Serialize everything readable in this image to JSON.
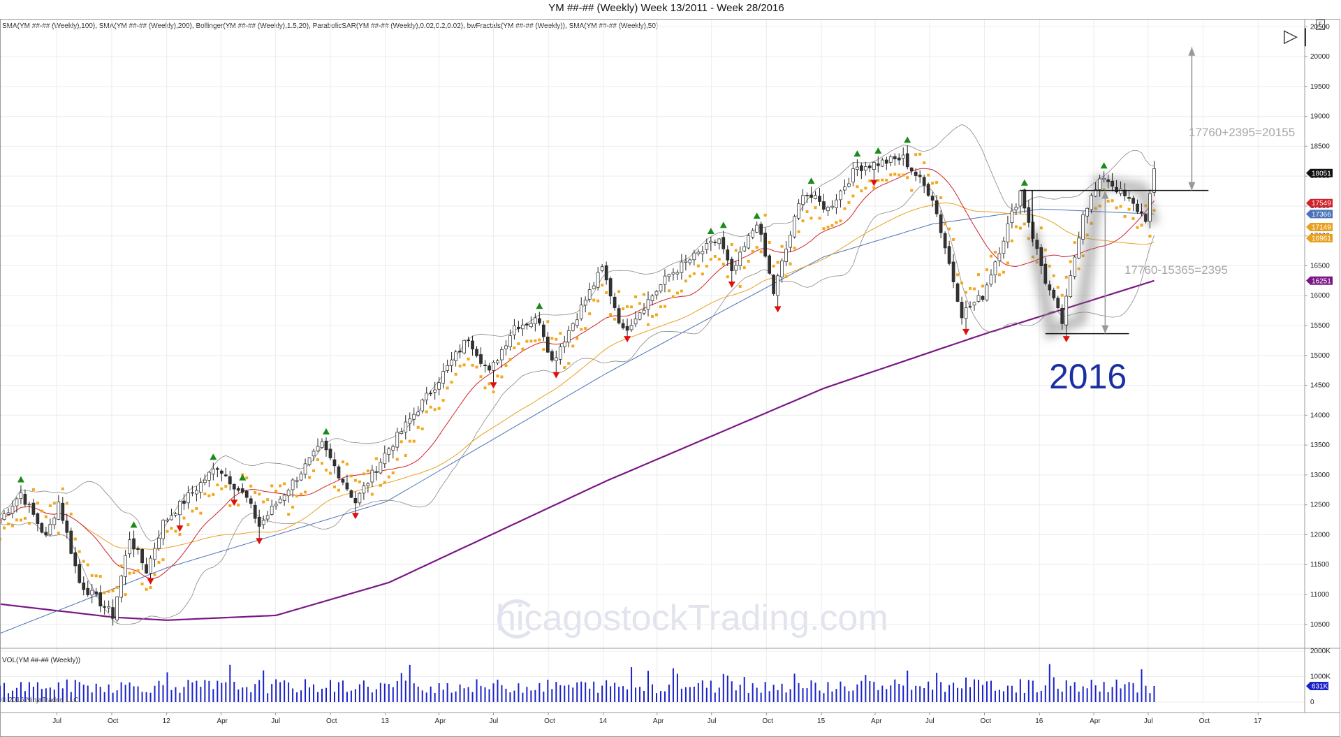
{
  "title": "YM ##-## (Weekly)  Week 13/2011 - Week 28/2016",
  "indicators_text": "SMA(YM ##-## (Weekly),100), SMA(YM ##-## (Weekly),200), Bollinger(YM ##-## (Weekly),1.5,20), ParabolicSAR(YM ##-## (Weekly),0.02,0.2,0.02), bwFractals(YM ##-## (Weekly)), SMA(YM ##-## (Weekly),50)",
  "volume_label": "VOL(YM ##-## (Weekly))",
  "copyright": "© 2016 NinjaTrader, LLC",
  "watermark": "hicagostockTrading.com",
  "annotations": {
    "year_label": "2016",
    "target_text": "17760+2395=20155",
    "range_text": "17760-15365=2395"
  },
  "icons": {
    "play": "play-end-icon",
    "doc": "document-icon"
  },
  "colors": {
    "candle_up": "#ffffff",
    "candle_down": "#333333",
    "sma_purple": "#7b1785",
    "sma_blue": "#4a72b8",
    "sma_red": "#d0222a",
    "sma_orange": "#e8a020",
    "sar": "#f2a81c",
    "fractal_up": "#1a8a1a",
    "fractal_down": "#e01010",
    "volume": "#1a22c8",
    "bollinger": "#888888"
  },
  "chart_data": {
    "type": "line",
    "title": "YM ##-## (Weekly)  Week 13/2011 - Week 28/2016",
    "yaxis": {
      "ticks": [
        10500,
        11000,
        11500,
        12000,
        12500,
        13000,
        13500,
        14000,
        14500,
        15000,
        15500,
        16000,
        16500,
        17000,
        17500,
        18000,
        18500,
        19000,
        19500,
        20000,
        20500
      ],
      "range": [
        10100,
        20620
      ]
    },
    "xaxis": {
      "tick_labels": [
        "Jul",
        "Oct",
        "12",
        "Apr",
        "Jul",
        "Oct",
        "13",
        "Apr",
        "Jul",
        "Oct",
        "14",
        "Apr",
        "Jul",
        "Oct",
        "15",
        "Apr",
        "Jul",
        "Oct",
        "16",
        "Apr",
        "Jul",
        "Oct",
        "17"
      ],
      "start": "2011-03-28",
      "end": "2017-03-20"
    },
    "price_badges": [
      {
        "value": "18051",
        "price": 18051,
        "color": "#111111"
      },
      {
        "value": "17549",
        "price": 17549,
        "color": "#d0222a"
      },
      {
        "value": "17366",
        "price": 17366,
        "color": "#4a72b8"
      },
      {
        "value": "17149",
        "price": 17149,
        "color": "#e8a020"
      },
      {
        "value": "16961",
        "price": 16961,
        "color": "#e8a020"
      },
      {
        "value": "16251",
        "price": 16251,
        "color": "#7b1785"
      }
    ],
    "close_series": {
      "name": "YM ##-## (Weekly)",
      "points": [
        [
          "2011-03-28",
          12250
        ],
        [
          "2011-05-02",
          12700
        ],
        [
          "2011-06-13",
          11950
        ],
        [
          "2011-07-04",
          12550
        ],
        [
          "2011-08-08",
          11200
        ],
        [
          "2011-09-19",
          10800
        ],
        [
          "2011-10-03",
          10650
        ],
        [
          "2011-10-31",
          11950
        ],
        [
          "2011-11-28",
          11400
        ],
        [
          "2011-12-26",
          12200
        ],
        [
          "2012-03-26",
          13150
        ],
        [
          "2012-05-14",
          12600
        ],
        [
          "2012-06-04",
          12150
        ],
        [
          "2012-07-16",
          12700
        ],
        [
          "2012-09-17",
          13500
        ],
        [
          "2012-11-12",
          12550
        ],
        [
          "2012-12-31",
          13350
        ],
        [
          "2013-03-18",
          14400
        ],
        [
          "2013-05-20",
          15300
        ],
        [
          "2013-06-24",
          14700
        ],
        [
          "2013-08-05",
          15500
        ],
        [
          "2013-09-16",
          15600
        ],
        [
          "2013-10-07",
          14900
        ],
        [
          "2013-12-30",
          16450
        ],
        [
          "2014-02-03",
          15400
        ],
        [
          "2014-04-21",
          16350
        ],
        [
          "2014-07-14",
          16950
        ],
        [
          "2014-08-04",
          16350
        ],
        [
          "2014-09-15",
          17250
        ],
        [
          "2014-10-13",
          16050
        ],
        [
          "2014-12-01",
          17750
        ],
        [
          "2015-01-12",
          17450
        ],
        [
          "2015-03-02",
          18150
        ],
        [
          "2015-05-18",
          18300
        ],
        [
          "2015-07-06",
          17650
        ],
        [
          "2015-08-24",
          15700
        ],
        [
          "2015-09-28",
          16000
        ],
        [
          "2015-11-30",
          17750
        ],
        [
          "2016-01-11",
          16250
        ],
        [
          "2016-02-08",
          15550
        ],
        [
          "2016-03-14",
          17400
        ],
        [
          "2016-04-18",
          18000
        ],
        [
          "2016-06-27",
          17300
        ],
        [
          "2016-07-11",
          18051
        ]
      ]
    },
    "sma_200_series": {
      "name": "SMA(YM ##-## (Weekly),200)",
      "points": [
        [
          "2011-03-28",
          10840
        ],
        [
          "2011-10-03",
          10620
        ],
        [
          "2012-01-02",
          10570
        ],
        [
          "2012-07-02",
          10650
        ],
        [
          "2013-01-07",
          11200
        ],
        [
          "2014-01-06",
          12900
        ],
        [
          "2015-01-05",
          14450
        ],
        [
          "2015-09-28",
          15350
        ],
        [
          "2016-07-11",
          16251
        ]
      ]
    },
    "sma_100_series": {
      "name": "SMA(YM ##-## (Weekly),100)",
      "points": [
        [
          "2011-03-28",
          10350
        ],
        [
          "2012-01-02",
          11450
        ],
        [
          "2013-01-02",
          12550
        ],
        [
          "2014-01-06",
          14700
        ],
        [
          "2015-01-05",
          16650
        ],
        [
          "2015-07-06",
          17200
        ],
        [
          "2016-01-04",
          17450
        ],
        [
          "2016-07-11",
          17366
        ]
      ]
    },
    "volume_axis": {
      "ticks": [
        0,
        1000000,
        2000000
      ],
      "tick_labels": [
        "0",
        "1000K",
        "2000K"
      ],
      "last_badge": "631K",
      "last_value": 631000
    },
    "levels": [
      {
        "name": "resistance",
        "price": 17760,
        "from": "2015-11-30",
        "to": "2016-10-10"
      },
      {
        "name": "support",
        "price": 15365,
        "from": "2016-01-11",
        "to": "2016-05-30"
      },
      {
        "name": "target",
        "price": 20155
      }
    ]
  }
}
